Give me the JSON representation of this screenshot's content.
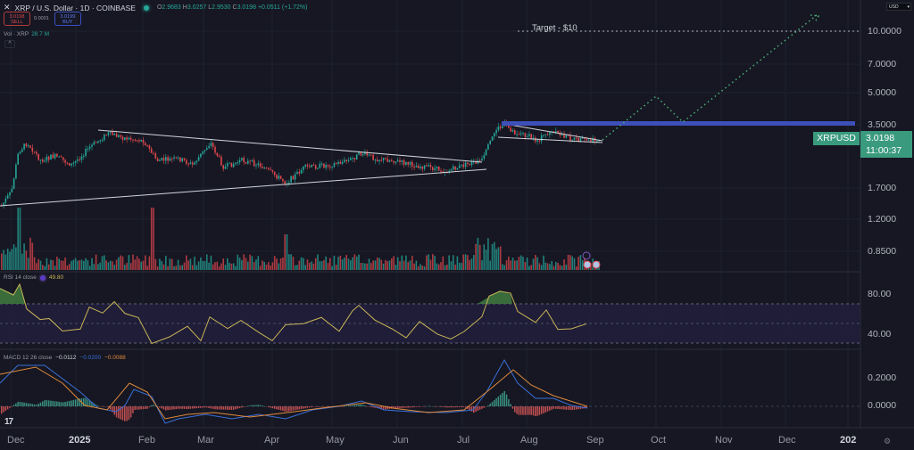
{
  "header": {
    "symbol_title": "XRP / U.S. Dollar · 1D · COINBASE",
    "status": "market-open",
    "ohlc": {
      "open_label": "O",
      "open": "2.9683",
      "high_label": "H",
      "high": "3.0257",
      "low_label": "L",
      "low": "2.9530",
      "close_label": "C",
      "close": "3.0198",
      "change": "+0.0511 (+1.72%)"
    },
    "sell": {
      "price": "3.0198",
      "label": "SELL"
    },
    "spread": "0.0001",
    "buy": {
      "price": "3.0199",
      "label": "BUY"
    },
    "volume": {
      "label": "Vol · XRP",
      "value": "28.7 M"
    },
    "collapse_label": "^",
    "currency": "USD"
  },
  "price_axis": {
    "labels": [
      "10.0000",
      "7.0000",
      "5.0000",
      "3.5000",
      "1.7000",
      "1.2000",
      "0.8500"
    ]
  },
  "price_tag": {
    "symbol": "XRPUSD",
    "price": "3.0198",
    "countdown": "11:00:37",
    "color": "#3a9a7e"
  },
  "annotations": {
    "target_label": "Target - $10",
    "resistance_color": "#3d4fb8",
    "projection_color": "#4caf7a"
  },
  "rsi": {
    "label": "RSI 14 close",
    "value": "49.80",
    "axis": [
      "80.00",
      "40.00"
    ]
  },
  "macd": {
    "label": "MACD 12 26 close",
    "hist": "−0.0112",
    "macd": "−0.0200",
    "signal": "−0.0088",
    "axis": [
      "0.2000",
      "0.0000"
    ]
  },
  "time_axis": {
    "labels": [
      "Dec",
      "2025",
      "Feb",
      "Mar",
      "Apr",
      "May",
      "Jun",
      "Jul",
      "Aug",
      "Sep",
      "Oct",
      "Nov",
      "Dec",
      "202"
    ]
  },
  "chart_data": {
    "type": "candlestick",
    "title": "XRP / U.S. Dollar · 1D · COINBASE",
    "xlabel": "",
    "ylabel": "USD",
    "y_scale": "log",
    "ylim": [
      0.7,
      12
    ],
    "x": [
      "Dec 2024",
      "Jan 2025",
      "Feb",
      "Mar",
      "Apr",
      "May",
      "Jun",
      "Jul",
      "Aug",
      "Sep 2025"
    ],
    "close_approx": [
      2.3,
      2.4,
      2.6,
      2.3,
      2.0,
      2.2,
      2.15,
      2.3,
      3.0,
      3.02
    ],
    "last": {
      "open": 2.9683,
      "high": 3.0257,
      "low": 2.953,
      "close": 3.0198,
      "change": 0.0511,
      "change_pct": 1.72
    },
    "lines": [
      {
        "name": "descending trendline",
        "from": [
          "mid Jan 2025",
          3.3
        ],
        "to": [
          "early Jul 2025",
          2.3
        ]
      },
      {
        "name": "ascending trendline",
        "from": [
          "Dec 2024",
          1.45
        ],
        "to": [
          "early Jul 2025",
          2.15
        ]
      },
      {
        "name": "resistance",
        "value": 3.5
      },
      {
        "name": "target",
        "value": 10.0,
        "label": "Target - $10"
      }
    ],
    "projection": [
      [
        "Sep 2025",
        3.0
      ],
      [
        "late Sep 2025",
        4.9
      ],
      [
        "mid Oct 2025",
        3.55
      ],
      [
        "mid Dec 2025",
        11.0
      ]
    ],
    "indicators": {
      "rsi": {
        "period": 14,
        "value": 49.8,
        "bands": [
          70,
          30
        ],
        "axis": [
          80,
          40
        ]
      },
      "macd": {
        "fast": 12,
        "slow": 26,
        "histogram": -0.0112,
        "macd": -0.02,
        "signal": -0.0088,
        "axis": [
          0.2,
          0.0
        ]
      },
      "volume": {
        "last": "28.7M"
      }
    }
  }
}
